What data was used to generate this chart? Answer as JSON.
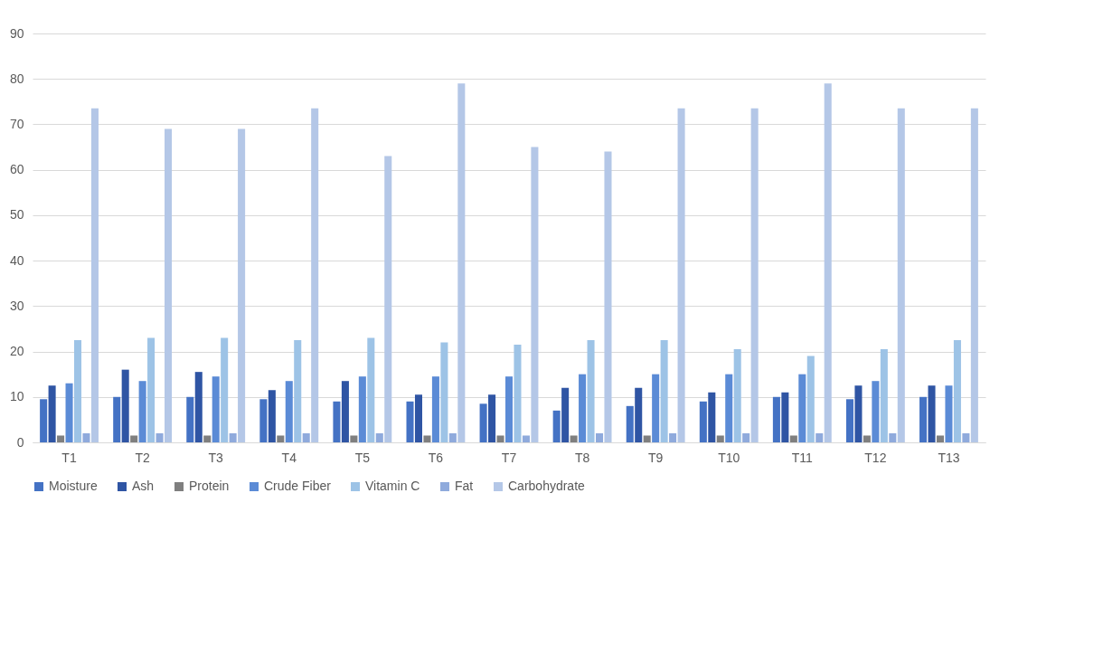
{
  "chart_data": {
    "type": "bar",
    "categories": [
      "T1",
      "T2",
      "T3",
      "T4",
      "T5",
      "T6",
      "T7",
      "T8",
      "T9",
      "T10",
      "T11",
      "T12",
      "T13"
    ],
    "series": [
      {
        "name": "Moisture",
        "color": "#4472c4",
        "values": [
          9.5,
          10,
          10,
          9.5,
          9,
          9,
          8.5,
          7,
          8,
          9,
          10,
          9.5,
          10
        ]
      },
      {
        "name": "Ash",
        "color": "#2f55a4",
        "values": [
          12.5,
          16,
          15.5,
          11.5,
          13.5,
          10.5,
          10.5,
          12,
          12,
          11,
          11,
          12.5,
          12.5
        ]
      },
      {
        "name": "Protein",
        "color": "#7f7f7f",
        "values": [
          1.5,
          1.5,
          1.5,
          1.5,
          1.5,
          1.5,
          1.5,
          1.5,
          1.5,
          1.5,
          1.5,
          1.5,
          1.5
        ]
      },
      {
        "name": "Crude Fiber",
        "color": "#5b8bd6",
        "values": [
          13,
          13.5,
          14.5,
          13.5,
          14.5,
          14.5,
          14.5,
          15,
          15,
          15,
          15,
          13.5,
          12.5
        ]
      },
      {
        "name": "Vitamin C",
        "color": "#9dc3e6",
        "values": [
          22.5,
          23,
          23,
          22.5,
          23,
          22,
          21.5,
          22.5,
          22.5,
          20.5,
          19,
          20.5,
          22.5
        ]
      },
      {
        "name": "Fat",
        "color": "#8faadc",
        "values": [
          2,
          2,
          2,
          2,
          2,
          2,
          1.5,
          2,
          2,
          2,
          2,
          2,
          2
        ]
      },
      {
        "name": "Carbohydrate",
        "color": "#b4c7e7",
        "values": [
          73.5,
          69,
          69,
          73.5,
          63,
          79,
          65,
          64,
          73.5,
          73.5,
          79,
          73.5,
          73.5
        ]
      }
    ],
    "ylim": [
      0,
      90
    ],
    "yticks": [
      0,
      10,
      20,
      30,
      40,
      50,
      60,
      70,
      80,
      90
    ],
    "grid": "y",
    "legend": "bottom"
  }
}
